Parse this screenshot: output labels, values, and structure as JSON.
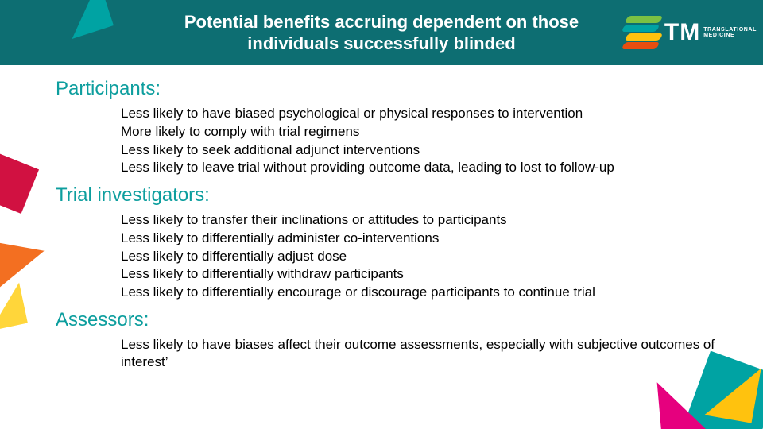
{
  "colors": {
    "header_bg": "#0d6e72",
    "accent_teal": "#00a3a3",
    "heading_text": "#0d9e9e",
    "body_text": "#000000",
    "white": "#ffffff",
    "magenta": "#e6007e",
    "yellow": "#ffc20e",
    "yellow_light": "#ffd63a",
    "orange": "#f36f21",
    "red": "#d11141",
    "green": "#7bc143"
  },
  "typography": {
    "title_fontsize": 22,
    "title_weight": "bold",
    "heading_fontsize": 24,
    "body_fontsize": 17,
    "font_family": "Arial"
  },
  "header": {
    "title": "Potential benefits accruing dependent on those individuals successfully blinded"
  },
  "logo": {
    "initials": "TM",
    "line1": "TRANSLATIONAL",
    "line2": "MEDICINE",
    "stripe_colors": [
      "#7bc143",
      "#00a3a3",
      "#ffc20e",
      "#e84e0f"
    ]
  },
  "sections": [
    {
      "heading": "Participants:",
      "items": [
        "Less likely to have biased psychological or physical responses to intervention",
        "More likely to comply with trial regimens",
        "Less likely to seek additional adjunct interventions",
        "Less likely to leave trial without providing outcome data, leading to lost to follow-up"
      ]
    },
    {
      "heading": "Trial investigators:",
      "items": [
        "Less likely to transfer their inclinations or attitudes to participants",
        "Less likely to differentially administer co-interventions",
        "Less likely to differentially adjust dose",
        "Less likely to differentially withdraw participants",
        "Less likely to differentially encourage or discourage participants to continue trial"
      ]
    },
    {
      "heading": "Assessors:",
      "items": [
        "Less likely to have biases affect their outcome assessments, especially with subjective outcomes of interest’"
      ]
    }
  ]
}
